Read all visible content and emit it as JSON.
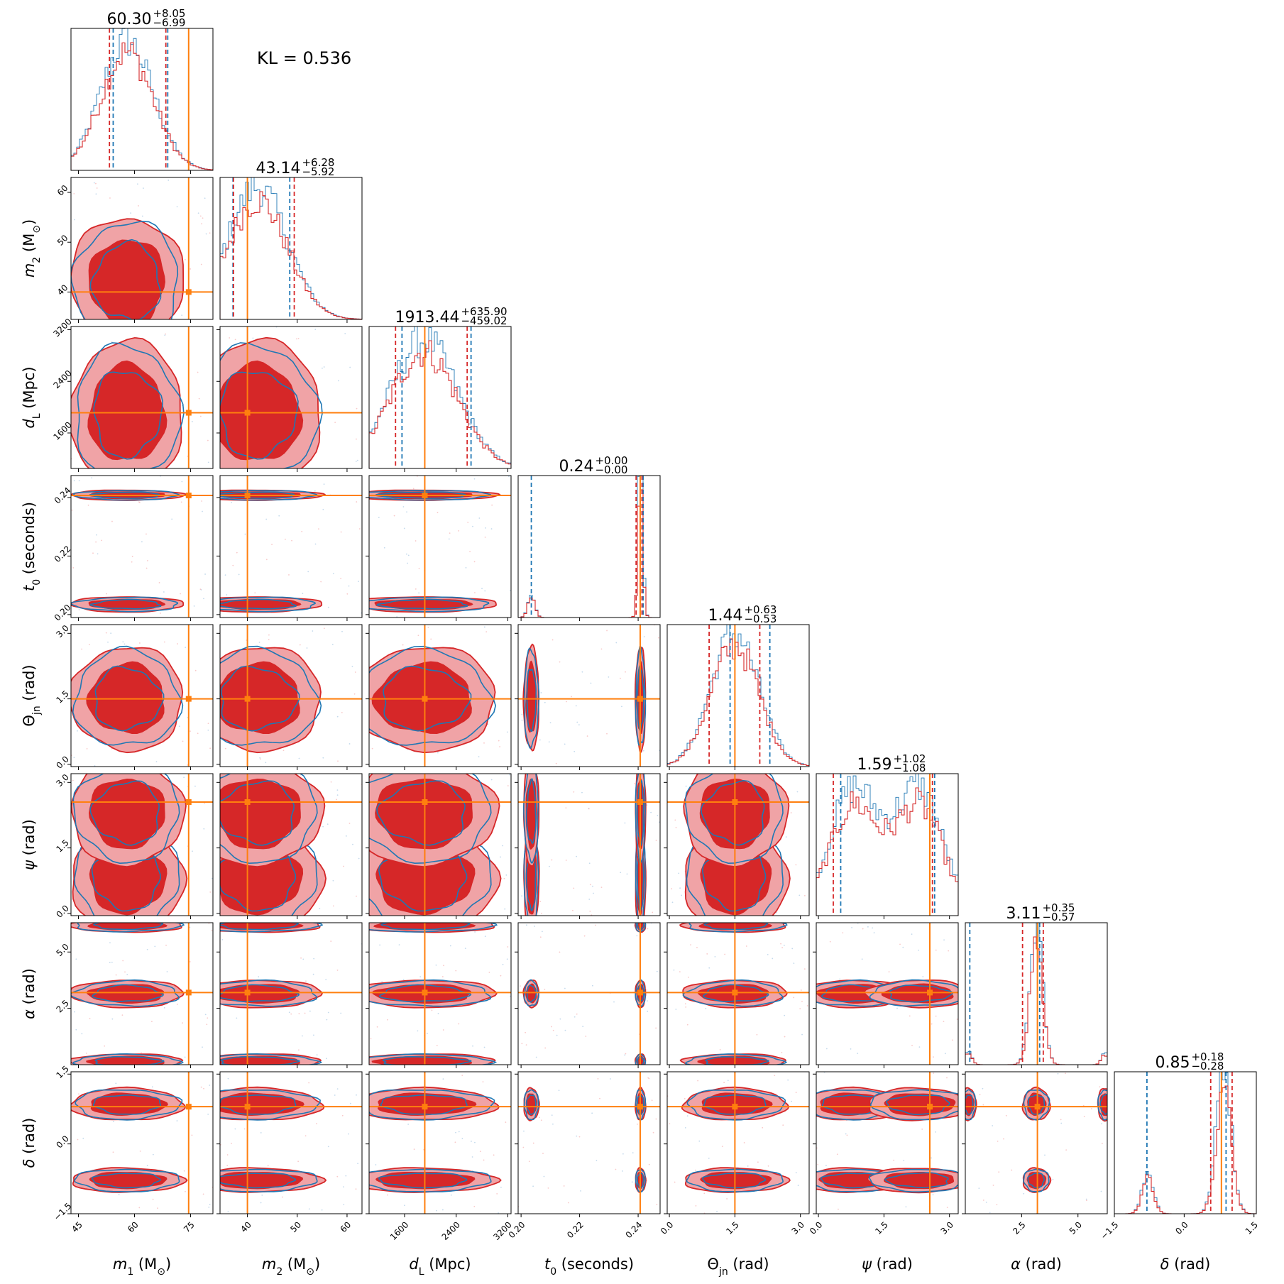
{
  "annotation": {
    "kl_text": "KL = 0.536"
  },
  "chart_data": {
    "type": "corner",
    "series": [
      {
        "name": "",
        "color": "#1f77b4"
      },
      {
        "name": "",
        "color": "#d62728"
      }
    ],
    "truth_color": "#ff7f0e",
    "params": [
      {
        "label": "m",
        "sub": "1",
        "unit": " (M",
        "unit_sub": "⊙",
        "unit_end": ")",
        "range": [
          43,
          81
        ],
        "ticks": [
          45,
          60,
          75
        ],
        "ytick_labels": [],
        "truth": 74.5,
        "title": {
          "main": "60.30",
          "plus": "+8.05",
          "minus": "−6.99"
        },
        "q_blue": [
          54.3,
          68.9
        ],
        "q_red": [
          53.3,
          68.4
        ]
      },
      {
        "label": "m",
        "sub": "2",
        "unit": " (M",
        "unit_sub": "⊙",
        "unit_end": ")",
        "range": [
          34.5,
          63
        ],
        "ticks": [
          40,
          50,
          60
        ],
        "ytick_labels": [
          "40",
          "50",
          "60"
        ],
        "truth": 40,
        "title": {
          "main": "43.14",
          "plus": "+6.28",
          "minus": "−5.92"
        },
        "q_blue": [
          37.1,
          48.5
        ],
        "q_red": [
          37.2,
          49.4
        ]
      },
      {
        "label": "d",
        "sub": "L",
        "unit": " (Mpc)",
        "unit_sub": "",
        "unit_end": "",
        "range": [
          1050,
          3250
        ],
        "ticks": [
          1600,
          2400,
          3200
        ],
        "ytick_labels": [
          "1600",
          "2400",
          "3200"
        ],
        "truth": 1913,
        "title": {
          "main": "1913.44",
          "plus": "+635.90",
          "minus": "−459.02"
        },
        "q_blue": [
          1560,
          2630
        ],
        "q_red": [
          1460,
          2570
        ]
      },
      {
        "label": "t",
        "sub": "0",
        "unit": " (seconds)",
        "unit_sub": "",
        "unit_end": "",
        "range": [
          0.199,
          0.2475
        ],
        "ticks": [
          0.2,
          0.22,
          0.24
        ],
        "ytick_labels": [
          "0.20",
          "0.22",
          "0.24"
        ],
        "truth": 0.2407,
        "title": {
          "main": "0.24",
          "plus": "+0.00",
          "minus": "−0.00"
        },
        "q_blue": [
          0.2035,
          0.2417
        ],
        "q_red": [
          0.2393,
          0.2413
        ]
      },
      {
        "label": "Θ",
        "sub": "jn",
        "unit": " (rad)",
        "unit_sub": "",
        "unit_end": "",
        "range": [
          -0.05,
          3.2
        ],
        "ticks": [
          0.0,
          1.5,
          3.0
        ],
        "ytick_labels": [
          "0.0",
          "1.5",
          "3.0"
        ],
        "truth": 1.5,
        "title": {
          "main": "1.44",
          "plus": "+0.63",
          "minus": "−0.53"
        },
        "q_blue": [
          1.39,
          2.3
        ],
        "q_red": [
          0.91,
          2.07
        ]
      },
      {
        "label": "ψ",
        "sub": "",
        "unit": " (rad)",
        "unit_sub": "",
        "unit_end": "",
        "range": [
          -0.05,
          3.2
        ],
        "ticks": [
          0.0,
          1.5,
          3.0
        ],
        "ytick_labels": [
          "0.0",
          "1.5",
          "3.0"
        ],
        "truth": 2.55,
        "title": {
          "main": "1.59",
          "plus": "+1.02",
          "minus": "−1.08"
        },
        "q_blue": [
          0.51,
          2.66
        ],
        "q_red": [
          0.34,
          2.61
        ]
      },
      {
        "label": "α",
        "sub": "",
        "unit": " (rad)",
        "unit_sub": "",
        "unit_end": "",
        "range": [
          0,
          6.3
        ],
        "ticks": [
          2.5,
          5.0
        ],
        "ytick_labels": [
          "2.5",
          "5.0"
        ],
        "truth": 3.2,
        "title": {
          "main": "3.11",
          "plus": "+0.35",
          "minus": "−0.57"
        },
        "q_blue": [
          0.2,
          3.3
        ],
        "q_red": [
          2.54,
          3.46
        ]
      },
      {
        "label": "δ",
        "sub": "",
        "unit": " (rad)",
        "unit_sub": "",
        "unit_end": "",
        "range": [
          -1.5,
          1.55
        ],
        "ticks": [
          -1.5,
          0.0,
          1.5
        ],
        "ytick_labels": [
          "−1.5",
          "0.0",
          "1.5"
        ],
        "truth": 0.8,
        "title": {
          "main": "0.85",
          "plus": "+0.18",
          "minus": "−0.28"
        },
        "q_blue": [
          -0.8,
          0.9
        ],
        "q_red": [
          0.57,
          1.03
        ]
      }
    ],
    "tick_labels_x": [
      [
        "45",
        "60",
        "75"
      ],
      [
        "40",
        "50",
        "60"
      ],
      [
        "1600",
        "2400",
        "3200"
      ],
      [
        "0.20",
        "0.22",
        "0.24"
      ],
      [
        "0.0",
        "1.5",
        "3.0"
      ],
      [
        "0.0",
        "1.5",
        "3.0"
      ],
      [
        "2.5",
        "5.0"
      ],
      [
        "−1.5",
        "0.0",
        "1.5"
      ]
    ],
    "modes": [
      [
        {
          "c": 58,
          "s": 7,
          "w": 1
        }
      ],
      [
        {
          "c": 42,
          "s": 6,
          "w": 1
        }
      ],
      [
        {
          "c": 1900,
          "s": 520,
          "w": 1
        }
      ],
      [
        {
          "c": 0.2408,
          "s": 0.0008,
          "w": 0.88
        },
        {
          "c": 0.2035,
          "s": 0.0012,
          "w": 0.12
        }
      ],
      [
        {
          "c": 1.5,
          "s": 0.55,
          "w": 1
        }
      ],
      [
        {
          "c": 0.8,
          "s": 0.55,
          "w": 0.5
        },
        {
          "c": 2.3,
          "s": 0.55,
          "w": 0.5
        }
      ],
      [
        {
          "c": 3.15,
          "s": 0.28,
          "w": 0.85
        },
        {
          "c": 0.15,
          "s": 0.15,
          "w": 0.08
        },
        {
          "c": 6.2,
          "s": 0.15,
          "w": 0.07
        }
      ],
      [
        {
          "c": 0.85,
          "s": 0.16,
          "w": 0.78
        },
        {
          "c": -0.78,
          "s": 0.12,
          "w": 0.22
        }
      ]
    ]
  }
}
